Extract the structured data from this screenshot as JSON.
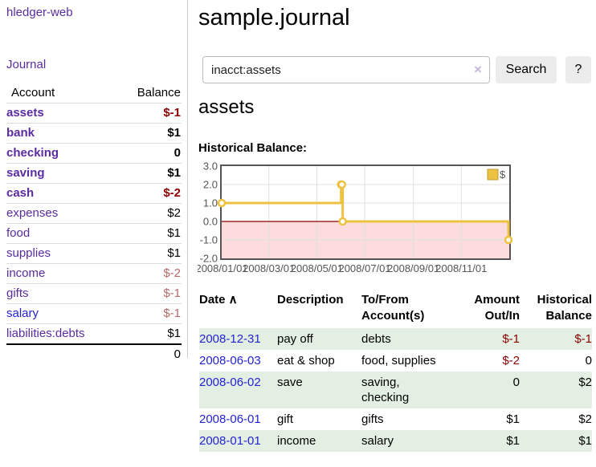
{
  "app": {
    "brand": "hledger-web",
    "nav_journal": "Journal"
  },
  "header": {
    "title": "sample.journal"
  },
  "search": {
    "value": "inacct:assets",
    "clear_icon": "×",
    "button_label": "Search",
    "help_label": "?"
  },
  "sidebar": {
    "account_header": "Account",
    "balance_header": "Balance",
    "accounts": [
      {
        "name": "assets",
        "depth": 1,
        "bold": true,
        "link": "purple",
        "balance": "$-1",
        "bclass": "neg"
      },
      {
        "name": "bank",
        "depth": 2,
        "bold": true,
        "link": "purple",
        "balance": "$1",
        "bclass": "pos"
      },
      {
        "name": "checking",
        "depth": 3,
        "bold": true,
        "link": "purple",
        "balance": "0",
        "bclass": "zero"
      },
      {
        "name": "saving",
        "depth": 3,
        "bold": true,
        "link": "purple",
        "balance": "$1",
        "bclass": "pos"
      },
      {
        "name": "cash",
        "depth": 2,
        "bold": true,
        "link": "purple",
        "balance": "$-2",
        "bclass": "neg"
      },
      {
        "name": "expenses",
        "depth": 1,
        "bold": false,
        "link": "purple",
        "balance": "$2",
        "bclass": "pos"
      },
      {
        "name": "food",
        "depth": 2,
        "bold": false,
        "link": "purple",
        "balance": "$1",
        "bclass": "pos"
      },
      {
        "name": "supplies",
        "depth": 2,
        "bold": false,
        "link": "purple",
        "balance": "$1",
        "bclass": "pos"
      },
      {
        "name": "income",
        "depth": 1,
        "bold": false,
        "link": "purple",
        "balance": "$-2",
        "bclass": "muted"
      },
      {
        "name": "gifts",
        "depth": 2,
        "bold": false,
        "link": "purple",
        "balance": "$-1",
        "bclass": "muted"
      },
      {
        "name": "salary",
        "depth": 2,
        "bold": false,
        "link": "blue",
        "balance": "$-1",
        "bclass": "muted"
      },
      {
        "name": "liabilities:debts",
        "depth": 1,
        "bold": false,
        "link": "purple",
        "balance": "$1",
        "bclass": "pos"
      }
    ],
    "total": "0"
  },
  "account_page": {
    "heading": "assets",
    "chart_label": "Historical Balance:"
  },
  "chart_data": {
    "type": "line",
    "title": "Historical Balance:",
    "x_range": [
      "2008-01-01",
      "2009-01-01"
    ],
    "y_range": [
      -2,
      3
    ],
    "y_ticks": [
      {
        "v": 3,
        "label": "3.0"
      },
      {
        "v": 2,
        "label": "2.0"
      },
      {
        "v": 1,
        "label": "1.0"
      },
      {
        "v": 0,
        "label": "0.0"
      },
      {
        "v": -1,
        "label": "-1.0"
      },
      {
        "v": -2,
        "label": "-2.0"
      }
    ],
    "y_grid": [
      2,
      1,
      -1
    ],
    "x_ticks": [
      {
        "date": "2008-01-01",
        "label": "2008/01/01"
      },
      {
        "date": "2008-03-01",
        "label": "2008/03/01"
      },
      {
        "date": "2008-05-01",
        "label": "2008/05/01"
      },
      {
        "date": "2008-07-01",
        "label": "2008/07/01"
      },
      {
        "date": "2008-09-01",
        "label": "2008/09/01"
      },
      {
        "date": "2008-11-01",
        "label": "2008/11/01"
      }
    ],
    "negative_band": {
      "from": 0,
      "to": -2,
      "color": "#fcdcdc",
      "line_color": "#8b0000"
    },
    "series": [
      {
        "name": "$",
        "color": "#edc240",
        "steps": true,
        "points": [
          [
            "2008-01-01",
            1
          ],
          [
            "2008-06-01",
            2
          ],
          [
            "2008-06-02",
            2
          ],
          [
            "2008-06-03",
            0
          ],
          [
            "2008-12-31",
            -1
          ]
        ]
      }
    ],
    "legend": {
      "label": "$",
      "position": "top-right"
    }
  },
  "register": {
    "columns": [
      {
        "label": "Date ∧",
        "align": "left"
      },
      {
        "label": "Description",
        "align": "left"
      },
      {
        "label": "To/From\nAccount(s)",
        "align": "left"
      },
      {
        "label": "Amount\nOut/In",
        "align": "right"
      },
      {
        "label": "Historical\nBalance",
        "align": "right"
      }
    ],
    "rows": [
      {
        "date": "2008-12-31",
        "description": "pay off",
        "accounts": "debts",
        "amount": "$-1",
        "aclass": "neg",
        "balance": "$-1",
        "bclass": "neg"
      },
      {
        "date": "2008-06-03",
        "description": "eat & shop",
        "accounts": "food, supplies",
        "amount": "$-2",
        "aclass": "neg",
        "balance": "0",
        "bclass": "zero"
      },
      {
        "date": "2008-06-02",
        "description": "save",
        "accounts": "saving,\nchecking",
        "amount": "0",
        "aclass": "zero",
        "balance": "$2",
        "bclass": "pos"
      },
      {
        "date": "2008-06-01",
        "description": "gift",
        "accounts": "gifts",
        "amount": "$1",
        "aclass": "pos",
        "balance": "$2",
        "bclass": "pos"
      },
      {
        "date": "2008-01-01",
        "description": "income",
        "accounts": "salary",
        "amount": "$1",
        "aclass": "pos",
        "balance": "$1",
        "bclass": "pos"
      }
    ]
  }
}
